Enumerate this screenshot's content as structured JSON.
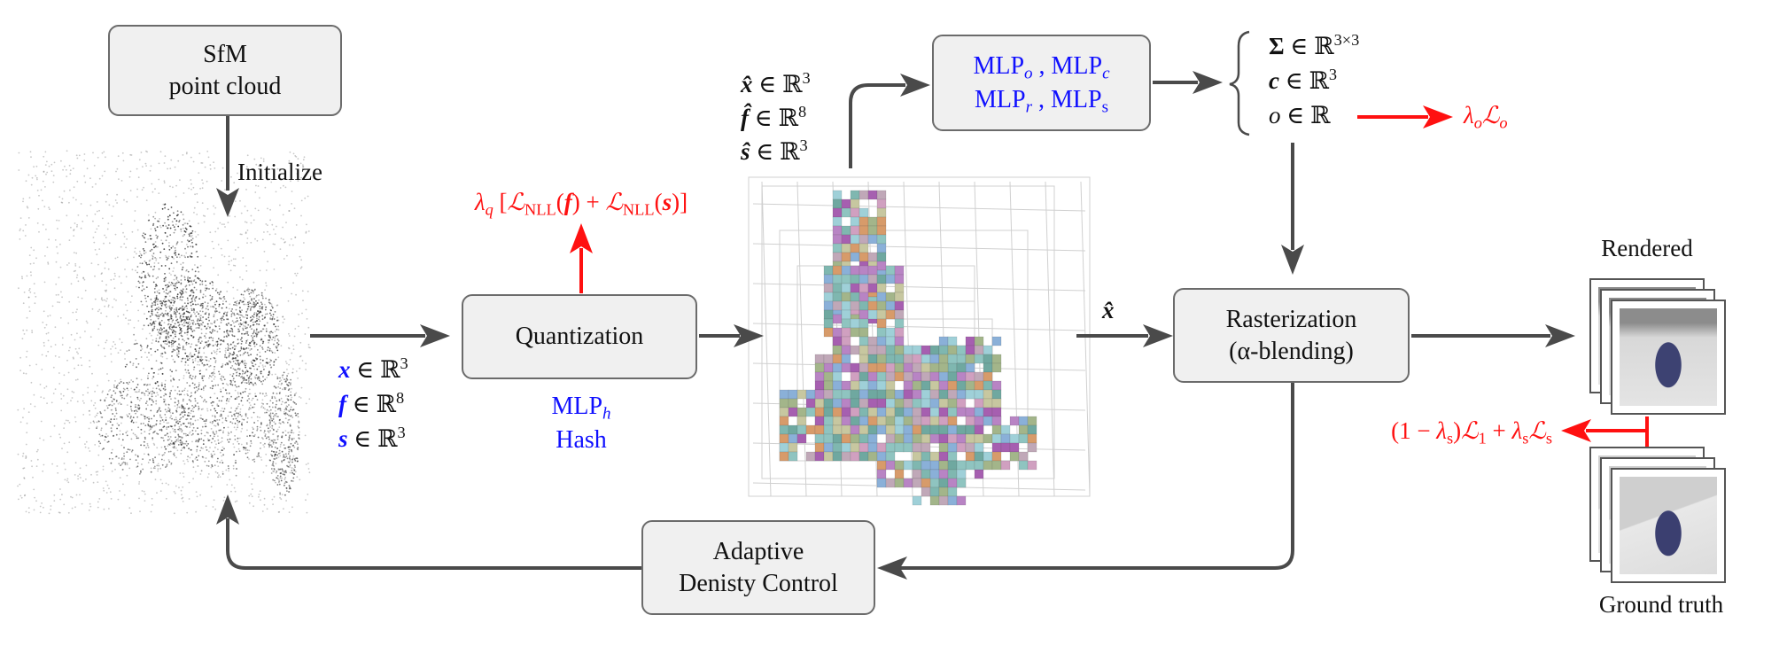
{
  "boxes": {
    "sfm": [
      "SfM",
      "point cloud"
    ],
    "quantization": "Quantization",
    "rasterization": [
      "Rasterization",
      "(α-blending)"
    ],
    "adaptive": [
      "Adaptive",
      "Denisty Control"
    ],
    "mlps": [
      [
        [
          "t",
          "MLP"
        ],
        [
          "sub",
          "o"
        ],
        [
          "t",
          " , MLP"
        ],
        [
          "sub",
          "c"
        ]
      ],
      [
        [
          "t",
          "MLP"
        ],
        [
          "sub",
          "r"
        ],
        [
          "t",
          " , MLP"
        ],
        [
          "sub",
          "s"
        ]
      ]
    ]
  },
  "labels": {
    "initialize": "Initialize",
    "mlp_h": [
      [
        "t",
        "MLP"
      ],
      [
        "sub",
        "h"
      ]
    ],
    "hash": "Hash",
    "x_hat": [
      [
        "v",
        "x̂"
      ]
    ],
    "rendered": "Rendered",
    "ground_truth": "Ground truth"
  },
  "attributes": [
    [
      [
        "v",
        "x"
      ],
      [
        "t",
        " ∈ ℝ"
      ],
      [
        "sup",
        "3"
      ]
    ],
    [
      [
        "v",
        "f"
      ],
      [
        "t",
        " ∈ ℝ"
      ],
      [
        "sup",
        "8"
      ]
    ],
    [
      [
        "v",
        "s"
      ],
      [
        "t",
        " ∈ ℝ"
      ],
      [
        "sup",
        "3"
      ]
    ]
  ],
  "quantized_attributes": [
    [
      [
        "v",
        "x̂"
      ],
      [
        "t",
        " ∈ ℝ"
      ],
      [
        "sup",
        "3"
      ]
    ],
    [
      [
        "v",
        "f̂"
      ],
      [
        "t",
        " ∈ ℝ"
      ],
      [
        "sup",
        "8"
      ]
    ],
    [
      [
        "v",
        "ŝ"
      ],
      [
        "t",
        " ∈ ℝ"
      ],
      [
        "sup",
        "3"
      ]
    ]
  ],
  "outputs": [
    [
      [
        "b",
        "Σ"
      ],
      [
        "t",
        " ∈ ℝ"
      ],
      [
        "sup",
        "3×3"
      ]
    ],
    [
      [
        "v",
        "c"
      ],
      [
        "t",
        " ∈ ℝ"
      ],
      [
        "sup",
        "3"
      ]
    ],
    [
      [
        "i",
        "o"
      ],
      [
        "t",
        " ∈ ℝ"
      ]
    ]
  ],
  "losses": {
    "quantization": [
      [
        "i",
        "λ"
      ],
      [
        "sub",
        "q"
      ],
      [
        "t",
        " ["
      ],
      [
        "cal",
        "ℒ"
      ],
      [
        "sub",
        "NLL"
      ],
      [
        "t",
        "("
      ],
      [
        "v",
        "f"
      ],
      [
        "t",
        ") + "
      ],
      [
        "cal",
        "ℒ"
      ],
      [
        "sub",
        "NLL"
      ],
      [
        "t",
        "("
      ],
      [
        "v",
        "s"
      ],
      [
        "t",
        ")]"
      ]
    ],
    "opacity": [
      [
        "i",
        "λ"
      ],
      [
        "sub",
        "o"
      ],
      [
        "cal",
        "ℒ"
      ],
      [
        "sub",
        "o"
      ]
    ],
    "render": [
      [
        "t",
        "(1 − "
      ],
      [
        "i",
        "λ"
      ],
      [
        "sub",
        "s"
      ],
      [
        "t",
        ")"
      ],
      [
        "cal",
        "ℒ"
      ],
      [
        "sub",
        "1"
      ],
      [
        "t",
        " + "
      ],
      [
        "i",
        "λ"
      ],
      [
        "sub",
        "s"
      ],
      [
        "cal",
        "ℒ"
      ],
      [
        "sub",
        "s"
      ]
    ]
  },
  "colors": {
    "arrow": "#4a4a4a",
    "loss": "#ff1010",
    "network": "#1010ff",
    "box_fill": "#f0f0f0",
    "box_border": "#6b6b6b"
  },
  "images": {
    "point_cloud": "sfm-point-cloud-rabbit",
    "voxel_grid": "octree-voxel-anchors",
    "rendered": "rendered-views-stack",
    "ground_truth": "ground-truth-views-stack"
  }
}
